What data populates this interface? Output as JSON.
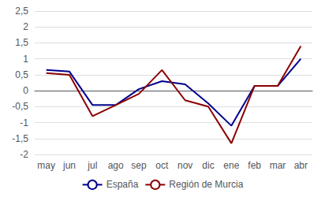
{
  "chart_data": {
    "type": "line",
    "categories": [
      "may",
      "jun",
      "jul",
      "ago",
      "sep",
      "oct",
      "nov",
      "dic",
      "ene",
      "feb",
      "mar",
      "abr"
    ],
    "series": [
      {
        "name": "España",
        "color": "#00008B",
        "values": [
          0.65,
          0.6,
          -0.45,
          -0.45,
          0.05,
          0.3,
          0.2,
          -0.4,
          -1.1,
          0.15,
          0.15,
          1.0
        ]
      },
      {
        "name": "Región de Murcia",
        "color": "#8B0000",
        "values": [
          0.55,
          0.5,
          -0.8,
          -0.45,
          -0.1,
          0.65,
          -0.3,
          -0.5,
          -1.65,
          0.15,
          0.15,
          1.4
        ]
      }
    ],
    "ylim": [
      -2.0,
      2.5
    ],
    "yticks": [
      -2,
      {
        "value": -1.5,
        "label": "-1,5"
      },
      -1,
      {
        "value": -0.5,
        "label": "-0,5"
      },
      0,
      {
        "value": 0.5,
        "label": "0,5"
      },
      1,
      {
        "value": 1.5,
        "label": "1,5"
      },
      2,
      {
        "value": 2.5,
        "label": "2,5"
      }
    ],
    "grid": true,
    "legend": "bottom"
  }
}
